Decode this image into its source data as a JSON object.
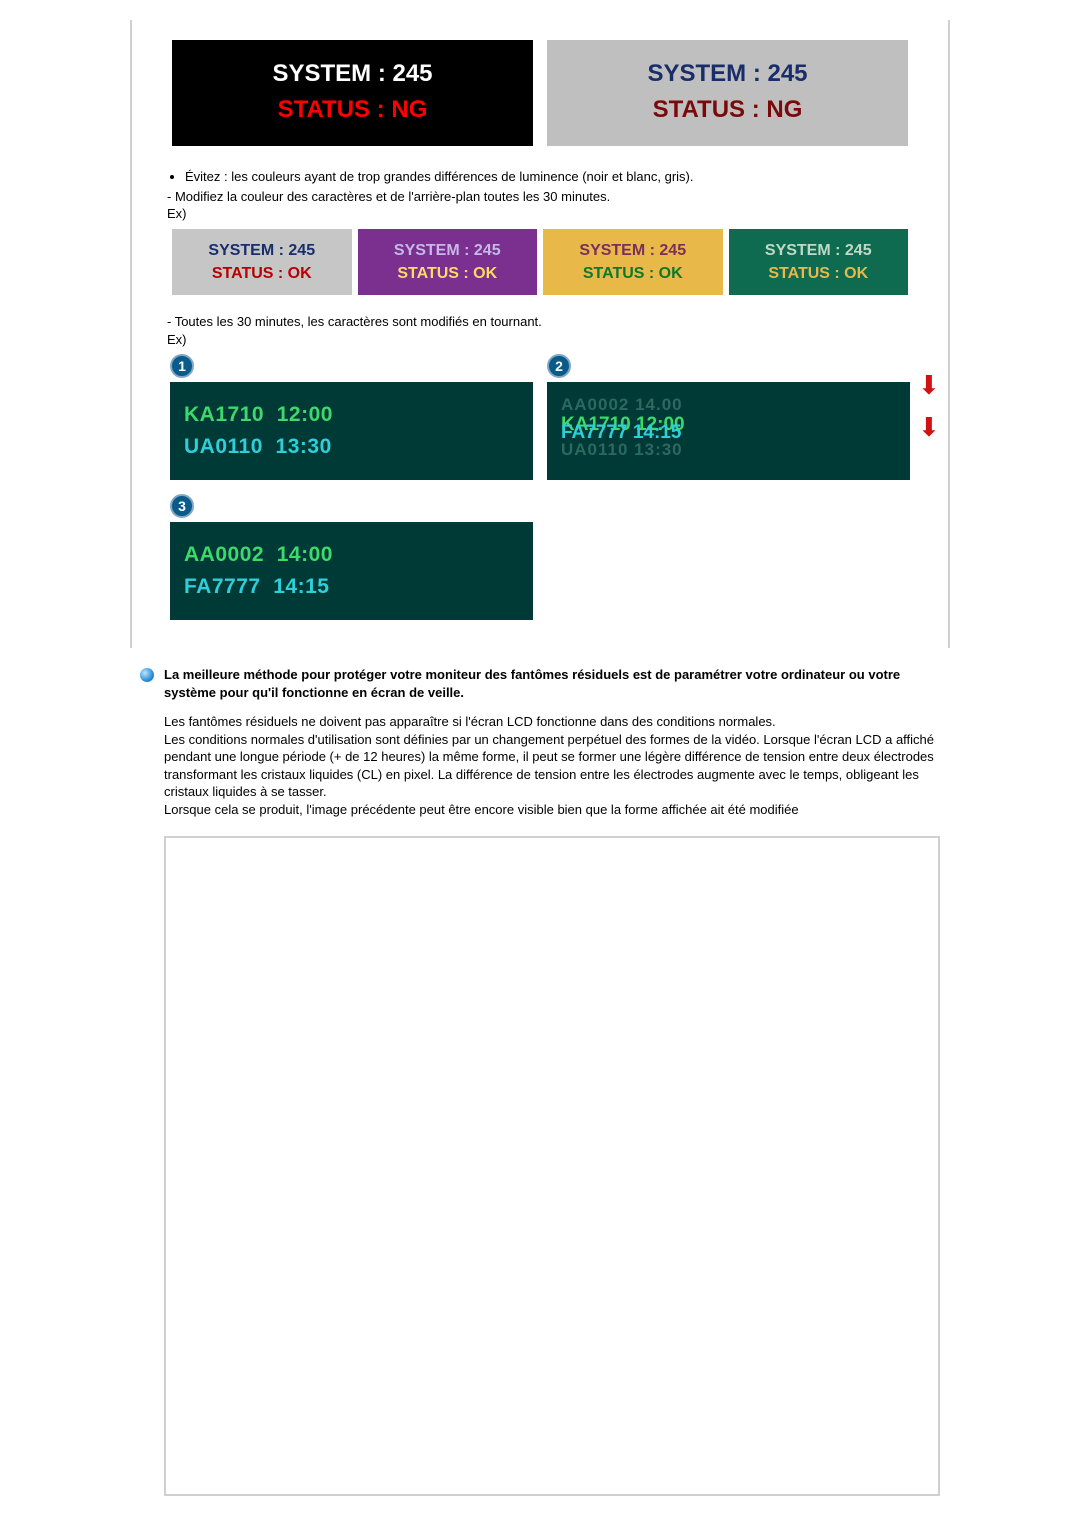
{
  "top_panels": {
    "left": {
      "line1": "SYSTEM : 245",
      "line2": "STATUS : NG",
      "bg": "#000000",
      "line1_color": "#ffffff",
      "line2_color": "#ff0000"
    },
    "right": {
      "line1": "SYSTEM : 245",
      "line2": "STATUS : NG",
      "bg": "#bfbfbf",
      "line1_color": "#1a2d6b",
      "line2_color": "#7a0a0a"
    }
  },
  "text1": {
    "bullet": "Évitez : les couleurs ayant de trop grandes différences de luminence (noir et blanc, gris).",
    "line2": "- Modifiez la couleur des caractères et de l'arrière-plan toutes les 30 minutes.",
    "ex": "Ex)"
  },
  "four_boxes": [
    {
      "l1": "SYSTEM : 245",
      "l2": "STATUS : OK",
      "bg": "#c6c6c6",
      "c1": "#1a2d6b",
      "c2": "#b80000"
    },
    {
      "l1": "SYSTEM : 245",
      "l2": "STATUS : OK",
      "bg": "#7b2f8e",
      "c1": "#c6b8e8",
      "c2": "#ffd966"
    },
    {
      "l1": "SYSTEM : 245",
      "l2": "STATUS : OK",
      "bg": "#e8b948",
      "c1": "#7b2f5a",
      "c2": "#0a7a2a"
    },
    {
      "l1": "SYSTEM : 245",
      "l2": "STATUS : OK",
      "bg": "#0f6b4f",
      "c1": "#bfd9c8",
      "c2": "#e8b948"
    }
  ],
  "text2": {
    "line1": "- Toutes les 30 minutes, les caractères sont modifiés en tournant.",
    "ex": "Ex)"
  },
  "displays": {
    "d1": {
      "badge": "1",
      "row1": "KA1710  12:00",
      "row2": "UA0110  13:30",
      "row1_color": "#3dd96b",
      "row2_color": "#2ecfd9"
    },
    "d2": {
      "badge": "2",
      "top_fade": "AA0002  14.00",
      "mid_green": "KA1710  12:00",
      "mid_cyan": "FA7777  14:15",
      "bot_fade": "UA0110  13:30"
    },
    "d3": {
      "badge": "3",
      "row1": "AA0002  14:00",
      "row2": "FA7777  14:15",
      "row1_color": "#3dd96b",
      "row2_color": "#2ecfd9"
    }
  },
  "heading": "La meilleure méthode pour protéger votre moniteur des fantômes résiduels est de paramétrer votre ordinateur ou votre système pour qu'il fonctionne en écran de veille.",
  "para": "Les fantômes résiduels ne doivent pas apparaître si l'écran LCD fonctionne dans des conditions normales.\nLes conditions normales d'utilisation sont définies par un changement perpétuel des formes de la vidéo. Lorsque l'écran LCD a affiché pendant une longue période (+ de 12 heures) la même forme, il peut se former une légère différence de tension entre deux électrodes transformant les cristaux liquides (CL) en pixel. La différence de tension entre les électrodes augmente avec le temps, obligeant les cristaux liquides à se tasser.\nLorsque cela se produit, l'image précédente peut être encore visible bien que la forme affichée ait été modifiée"
}
